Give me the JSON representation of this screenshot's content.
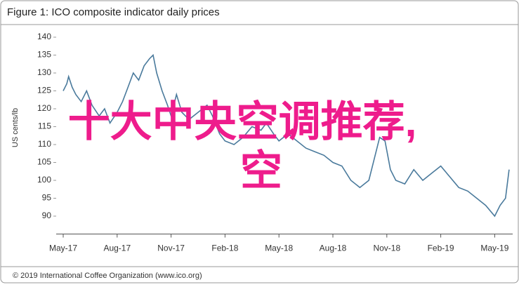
{
  "chart_data": {
    "type": "line",
    "title": "Figure 1: ICO composite indicator daily prices",
    "y_label": "US cents/lb",
    "footer": "© 2019 International Coffee Organization (www.ico.org)",
    "overlay": [
      "十大中央空调推荐,",
      "空"
    ],
    "color": "#4a7a9c",
    "x": [
      0,
      0.2,
      0.3,
      0.5,
      0.7,
      1,
      1.3,
      1.6,
      2,
      2.3,
      2.6,
      3,
      3.3,
      3.6,
      3.9,
      4.2,
      4.5,
      4.8,
      5,
      5.2,
      5.5,
      5.8,
      6,
      6.3,
      6.6,
      7,
      7.5,
      8,
      8.3,
      8.7,
      9,
      9.5,
      10,
      10.5,
      11,
      11.3,
      11.7,
      12,
      12.5,
      13,
      13.5,
      14,
      14.5,
      15,
      15.5,
      16,
      16.5,
      17,
      17.3,
      17.6,
      17.9,
      18.2,
      18.5,
      19,
      19.5,
      20,
      20.5,
      21,
      21.5,
      22,
      22.5,
      23,
      23.5,
      24,
      24.3,
      24.6,
      24.8
    ],
    "values": [
      125,
      127,
      129,
      126,
      124,
      122,
      125,
      121,
      118,
      120,
      116,
      119,
      122,
      126,
      130,
      128,
      132,
      134,
      135,
      130,
      125,
      121,
      118,
      124,
      119,
      117,
      119,
      121,
      118,
      113,
      111,
      110,
      112,
      115,
      114,
      116,
      113,
      111,
      113,
      111,
      109,
      108,
      107,
      105,
      104,
      100,
      98,
      100,
      106,
      112,
      111,
      103,
      100,
      99,
      103,
      100,
      102,
      104,
      101,
      98,
      97,
      95,
      93,
      90,
      93,
      95,
      103
    ],
    "xlim": [
      0,
      25
    ],
    "xticks": [
      {
        "value": 0,
        "label": "May-17"
      },
      {
        "value": 3,
        "label": "Aug-17"
      },
      {
        "value": 6,
        "label": "Nov-17"
      },
      {
        "value": 9,
        "label": "Feb-18"
      },
      {
        "value": 12,
        "label": "May-18"
      },
      {
        "value": 15,
        "label": "Aug-18"
      },
      {
        "value": 18,
        "label": "Nov-18"
      },
      {
        "value": 21,
        "label": "Feb-19"
      },
      {
        "value": 24,
        "label": "May-19"
      }
    ],
    "ylim": [
      85,
      140
    ],
    "yticks": [
      90,
      95,
      100,
      105,
      110,
      115,
      120,
      125,
      130,
      135,
      140
    ]
  }
}
